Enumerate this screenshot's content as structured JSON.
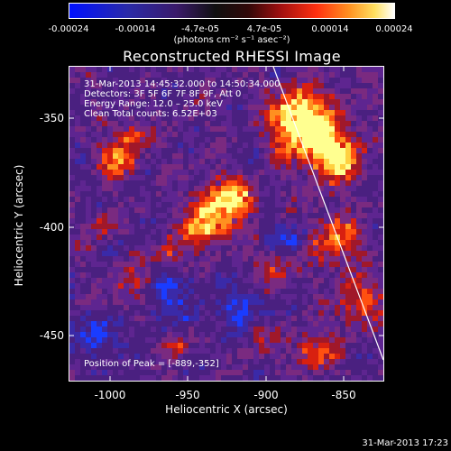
{
  "colorbar": {
    "ticks": [
      "-0.00024",
      "-0.00014",
      "-4.7e-05",
      "4.7e-05",
      "0.00014",
      "0.00024"
    ],
    "units": "(photons cm⁻² s⁻¹ asec⁻²)"
  },
  "title": "Reconstructed RHESSI Image",
  "info": {
    "time": "31-Mar-2013 14:45:32.000 to 14:50:34.000",
    "detectors": "Detectors: 3F 5F 6F 7F 8F 9F, Att 0",
    "energy": "Energy Range: 12.0 – 25.0 keV",
    "clean": "Clean     Total counts: 6.52E+03",
    "peak": "Position of Peak = [-889,-352]"
  },
  "axes": {
    "xlabel": "Heliocentric X (arcsec)",
    "ylabel": "Heliocentric Y (arcsec)",
    "xticks": [
      "-1000",
      "-950",
      "-900",
      "-850"
    ],
    "yticks": [
      "-350",
      "-400",
      "-450"
    ]
  },
  "footer": {
    "timestamp": "31-Mar-2013 17:23"
  },
  "colors": {
    "background": "#000000",
    "limb_line": "#ffffff",
    "colormap": [
      "#0010ff",
      "#1a1aa0",
      "#3a1a7a",
      "#5a1f9a",
      "#7a2a90",
      "#a01e20",
      "#d82010",
      "#ff6010",
      "#ffa020",
      "#ffff80",
      "#ffffff"
    ]
  }
}
